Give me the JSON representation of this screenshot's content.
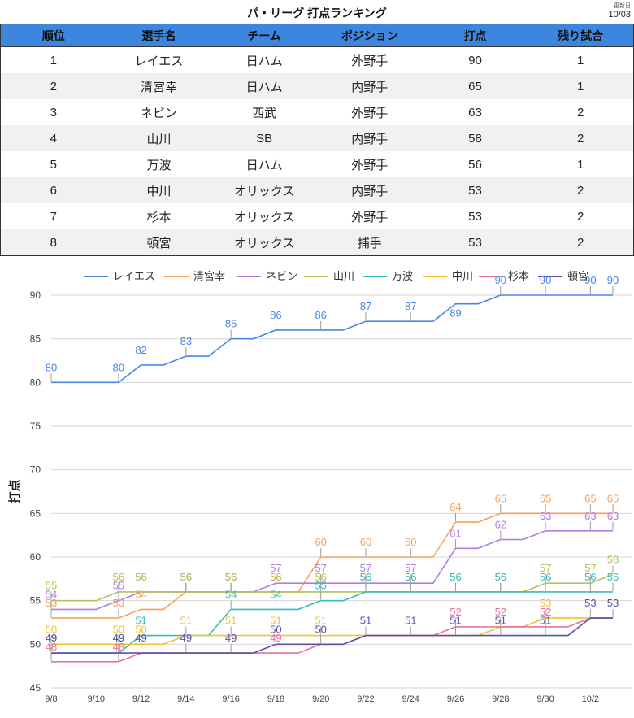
{
  "header": {
    "title": "パ・リーグ 打点ランキング",
    "updated_label": "更新日",
    "updated_date": "10/03"
  },
  "table": {
    "columns": [
      "順位",
      "選手名",
      "チーム",
      "ポジション",
      "打点",
      "残り試合"
    ],
    "rows": [
      [
        "1",
        "レイエス",
        "日ハム",
        "外野手",
        "90",
        "1"
      ],
      [
        "2",
        "清宮幸",
        "日ハム",
        "内野手",
        "65",
        "1"
      ],
      [
        "3",
        "ネビン",
        "西武",
        "外野手",
        "63",
        "2"
      ],
      [
        "4",
        "山川",
        "SB",
        "内野手",
        "58",
        "2"
      ],
      [
        "5",
        "万波",
        "日ハム",
        "外野手",
        "56",
        "1"
      ],
      [
        "6",
        "中川",
        "オリックス",
        "内野手",
        "53",
        "2"
      ],
      [
        "7",
        "杉本",
        "オリックス",
        "外野手",
        "53",
        "2"
      ],
      [
        "8",
        "頓宮",
        "オリックス",
        "捕手",
        "53",
        "2"
      ]
    ],
    "header_color": "#3c86dd"
  },
  "chart_data": {
    "type": "line",
    "title": "",
    "xlabel": "",
    "ylabel": "打点",
    "ylim": [
      45,
      90
    ],
    "yticks": [
      45,
      50,
      55,
      60,
      65,
      70,
      75,
      80,
      85,
      90
    ],
    "x": [
      "9/8",
      "9/9",
      "9/10",
      "9/11",
      "9/12",
      "9/13",
      "9/14",
      "9/15",
      "9/16",
      "9/17",
      "9/18",
      "9/19",
      "9/20",
      "9/21",
      "9/22",
      "9/23",
      "9/24",
      "9/25",
      "9/26",
      "9/27",
      "9/28",
      "9/29",
      "9/30",
      "10/1",
      "10/2",
      "10/3"
    ],
    "xtick_labels": [
      "9/8",
      "9/10",
      "9/12",
      "9/14",
      "9/16",
      "9/18",
      "9/20",
      "9/22",
      "9/24",
      "9/26",
      "9/28",
      "9/30",
      "10/2"
    ],
    "grid": true,
    "legend_position": "top",
    "series": [
      {
        "name": "レイエス",
        "color": "#4a86e8",
        "values": [
          80,
          80,
          80,
          80,
          82,
          82,
          83,
          83,
          85,
          85,
          86,
          86,
          86,
          86,
          87,
          87,
          87,
          87,
          89,
          89,
          90,
          90,
          90,
          90,
          90,
          90
        ],
        "labeled": {
          "9/8": 80,
          "9/11": 80,
          "9/12": 82,
          "9/14": 83,
          "9/16": 85,
          "9/18": 86,
          "9/20": 86,
          "9/22": 87,
          "9/24": 87,
          "9/26": 89,
          "9/28": 90,
          "9/30": 90,
          "10/2": 90,
          "10/3": 90
        }
      },
      {
        "name": "清宮幸",
        "color": "#f6a15c",
        "values": [
          53,
          53,
          53,
          53,
          54,
          54,
          56,
          56,
          56,
          56,
          56,
          56,
          60,
          60,
          60,
          60,
          60,
          60,
          64,
          64,
          65,
          65,
          65,
          65,
          65,
          65
        ],
        "labeled": {
          "9/8": 53,
          "9/11": 53,
          "9/12": 54,
          "9/14": 56,
          "9/16": 56,
          "9/18": 56,
          "9/20": 60,
          "9/22": 60,
          "9/24": 60,
          "9/26": 64,
          "9/28": 65,
          "9/30": 65,
          "10/2": 65,
          "10/3": 65
        }
      },
      {
        "name": "ネビン",
        "color": "#b07ce8",
        "values": [
          54,
          54,
          54,
          55,
          56,
          56,
          56,
          56,
          56,
          56,
          57,
          57,
          57,
          57,
          57,
          57,
          57,
          57,
          61,
          61,
          62,
          62,
          63,
          63,
          63,
          63
        ],
        "labeled": {
          "9/8": 54,
          "9/11": 55,
          "9/12": 56,
          "9/14": 56,
          "9/16": 56,
          "9/18": 57,
          "9/20": 57,
          "9/22": 57,
          "9/24": 57,
          "9/26": 61,
          "9/28": 62,
          "9/30": 63,
          "10/2": 63,
          "10/3": 63
        }
      },
      {
        "name": "山川",
        "color": "#b5c25a",
        "values": [
          55,
          55,
          55,
          56,
          56,
          56,
          56,
          56,
          56,
          56,
          56,
          56,
          56,
          56,
          56,
          56,
          56,
          56,
          56,
          56,
          56,
          56,
          57,
          57,
          57,
          58
        ],
        "labeled": {
          "9/8": 55,
          "9/11": 56,
          "9/12": 56,
          "9/14": 56,
          "9/16": 56,
          "9/18": 56,
          "9/20": 56,
          "9/22": 56,
          "9/24": 56,
          "9/26": 56,
          "9/28": 56,
          "9/30": 57,
          "10/2": 57,
          "10/3": 58
        }
      },
      {
        "name": "万波",
        "color": "#38bcbc",
        "values": [
          49,
          49,
          49,
          49,
          51,
          51,
          51,
          51,
          54,
          54,
          54,
          54,
          55,
          55,
          56,
          56,
          56,
          56,
          56,
          56,
          56,
          56,
          56,
          56,
          56,
          56
        ],
        "labeled": {
          "9/8": 49,
          "9/11": 49,
          "9/12": 51,
          "9/16": 54,
          "9/18": 54,
          "9/20": 55,
          "9/22": 56,
          "9/24": 56,
          "9/26": 56,
          "9/28": 56,
          "9/30": 56,
          "10/2": 56,
          "10/3": 56
        }
      },
      {
        "name": "中川",
        "color": "#f2c12e",
        "values": [
          50,
          50,
          50,
          50,
          50,
          50,
          51,
          51,
          51,
          51,
          51,
          51,
          51,
          51,
          51,
          51,
          51,
          51,
          51,
          51,
          52,
          52,
          53,
          53,
          53,
          53
        ],
        "labeled": {
          "9/8": 50,
          "9/11": 50,
          "9/12": 50,
          "9/14": 51,
          "9/16": 51,
          "9/18": 51,
          "9/20": 51,
          "9/30": 53
        }
      },
      {
        "name": "杉本",
        "color": "#e8719e",
        "values": [
          48,
          48,
          48,
          48,
          49,
          49,
          49,
          49,
          49,
          49,
          49,
          49,
          50,
          50,
          51,
          51,
          51,
          51,
          52,
          52,
          52,
          52,
          52,
          52,
          53,
          53
        ],
        "labeled": {
          "9/8": 48,
          "9/11": 48,
          "9/18": 49,
          "9/26": 52,
          "9/28": 52,
          "9/30": 52
        }
      },
      {
        "name": "頓宮",
        "color": "#5b4fa8",
        "values": [
          49,
          49,
          49,
          49,
          49,
          49,
          49,
          49,
          49,
          49,
          50,
          50,
          50,
          50,
          51,
          51,
          51,
          51,
          51,
          51,
          51,
          51,
          51,
          51,
          53,
          53
        ],
        "labeled": {
          "9/8": 49,
          "9/11": 49,
          "9/12": 49,
          "9/14": 49,
          "9/16": 49,
          "9/18": 50,
          "9/20": 50,
          "9/22": 51,
          "9/24": 51,
          "9/26": 51,
          "9/28": 51,
          "9/30": 51,
          "10/2": 53,
          "10/3": 53
        }
      }
    ]
  }
}
